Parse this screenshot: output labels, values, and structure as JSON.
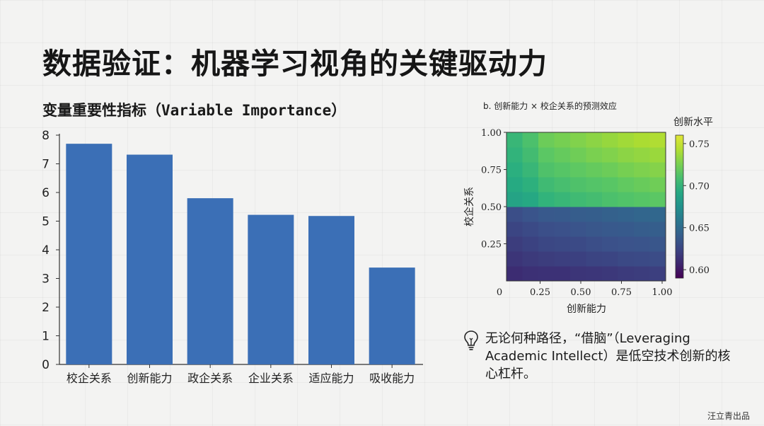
{
  "page": {
    "title": "数据验证：机器学习视角的关键驱动力",
    "insight": "无论何种路径，“借脑”（Leveraging Academic Intellect）是低空技术创新的核心杠杆。",
    "credit": "汪立青出品"
  },
  "colors": {
    "bar": "#3b6fb6",
    "colormap_low": "#3b2a6e",
    "colormap_high": "#d7e33a"
  },
  "icons": {
    "insight": "lightbulb-icon"
  },
  "chart_data": [
    {
      "type": "bar",
      "title_prefix": "变量重要性指标（",
      "title_en": "Variable Importance",
      "title_suffix": "）",
      "categories": [
        "校企关系",
        "创新能力",
        "政企关系",
        "企业关系",
        "适应能力",
        "吸收能力"
      ],
      "values": [
        7.7,
        7.32,
        5.8,
        5.22,
        5.18,
        3.38
      ],
      "yticks": [
        "0",
        "1",
        "2",
        "3",
        "4",
        "5",
        "6",
        "7",
        "8"
      ],
      "ylim": [
        0,
        8
      ],
      "grid": false
    },
    {
      "type": "heatmap",
      "title": "b. 创新能力 × 校企关系的预测效应",
      "xlabel": "创新能力",
      "ylabel": "校企关系",
      "xlim": [
        0,
        1
      ],
      "ylim": [
        0,
        1
      ],
      "xticks": [
        "0",
        "0.25",
        "0.50",
        "0.75",
        "1.00"
      ],
      "yticks": [
        "0.25",
        "0.50",
        "0.75",
        "1.00"
      ],
      "colorbar_label": "创新水平",
      "colorbar_ticks": [
        "0.60",
        "0.65",
        "0.70",
        "0.75"
      ],
      "colorbar_range": [
        0.59,
        0.76
      ],
      "grid": [
        [
          0.61,
          0.612,
          0.613,
          0.613,
          0.615,
          0.616,
          0.617,
          0.619,
          0.62,
          0.621
        ],
        [
          0.615,
          0.618,
          0.62,
          0.621,
          0.622,
          0.624,
          0.625,
          0.627,
          0.628,
          0.629
        ],
        [
          0.62,
          0.623,
          0.626,
          0.627,
          0.628,
          0.63,
          0.632,
          0.633,
          0.634,
          0.635
        ],
        [
          0.625,
          0.628,
          0.631,
          0.632,
          0.634,
          0.636,
          0.637,
          0.638,
          0.64,
          0.641
        ],
        [
          0.63,
          0.634,
          0.637,
          0.638,
          0.64,
          0.641,
          0.643,
          0.644,
          0.646,
          0.647
        ],
        [
          0.688,
          0.692,
          0.7,
          0.703,
          0.706,
          0.708,
          0.711,
          0.713,
          0.715,
          0.717
        ],
        [
          0.693,
          0.698,
          0.706,
          0.709,
          0.712,
          0.714,
          0.716,
          0.719,
          0.721,
          0.723
        ],
        [
          0.697,
          0.703,
          0.712,
          0.715,
          0.718,
          0.72,
          0.722,
          0.725,
          0.727,
          0.729
        ],
        [
          0.7,
          0.707,
          0.717,
          0.72,
          0.723,
          0.726,
          0.728,
          0.731,
          0.733,
          0.735
        ],
        [
          0.703,
          0.711,
          0.722,
          0.725,
          0.728,
          0.731,
          0.734,
          0.737,
          0.74,
          0.742
        ]
      ]
    }
  ]
}
